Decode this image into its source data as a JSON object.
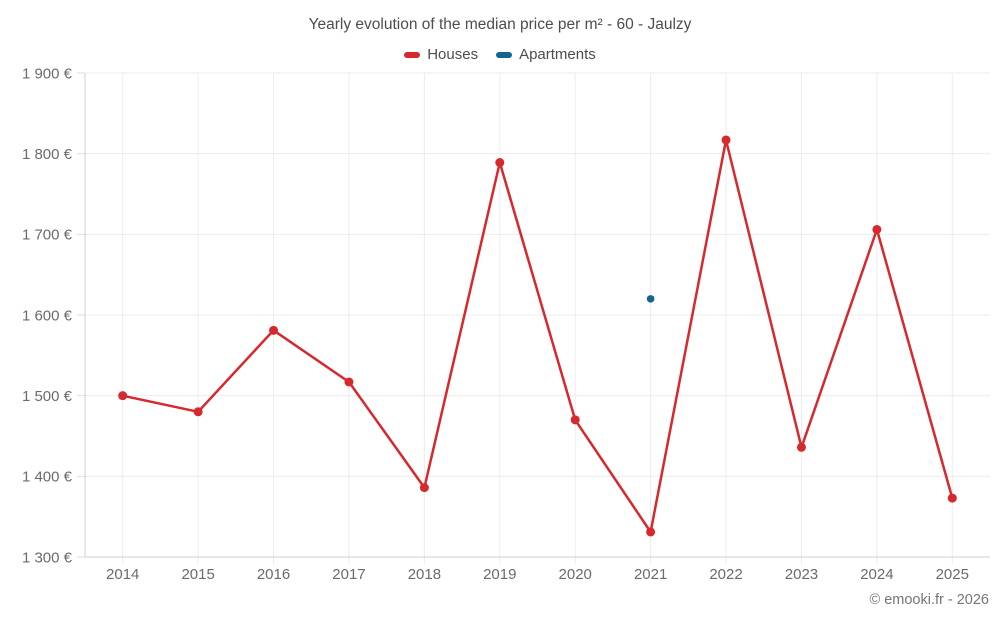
{
  "header": {
    "title": "Yearly evolution of the median price per m² - 60 - Jaulzy"
  },
  "legend": {
    "items": [
      {
        "label": "Houses",
        "color": "#d7282d"
      },
      {
        "label": "Apartments",
        "color": "#15658f"
      }
    ]
  },
  "footer": {
    "copyright": "© emooki.fr - 2026"
  },
  "colors": {
    "grid": "#ececec",
    "axis": "#cfcfcf",
    "tick": "#dedede",
    "tick_text": "#6b6b6b",
    "title_text": "#4d4d4d"
  },
  "chart_data": {
    "type": "line",
    "title": "Yearly evolution of the median price per m² - 60 - Jaulzy",
    "categories": [
      "2014",
      "2015",
      "2016",
      "2017",
      "2018",
      "2019",
      "2020",
      "2021",
      "2022",
      "2023",
      "2024",
      "2025"
    ],
    "series": [
      {
        "name": "Houses",
        "color": "#d7282d",
        "marker_radius": 4.5,
        "line_width": 2.5,
        "values": [
          1500,
          1480,
          1581,
          1517,
          1386,
          1789,
          1470,
          1331,
          1817,
          1436,
          1706,
          1373
        ]
      },
      {
        "name": "Apartments",
        "color": "#15658f",
        "marker_radius": 3.8,
        "line_width": 2.5,
        "values": [
          null,
          null,
          null,
          null,
          null,
          null,
          null,
          1620,
          null,
          null,
          null,
          null
        ]
      }
    ],
    "ylim": [
      1300,
      1900
    ],
    "y_tick_step": 100,
    "y_tick_labels": [
      "1 300 €",
      "1 400 €",
      "1 500 €",
      "1 600 €",
      "1 700 €",
      "1 800 €",
      "1 900 €"
    ],
    "grid": true,
    "legend_position": "top"
  }
}
